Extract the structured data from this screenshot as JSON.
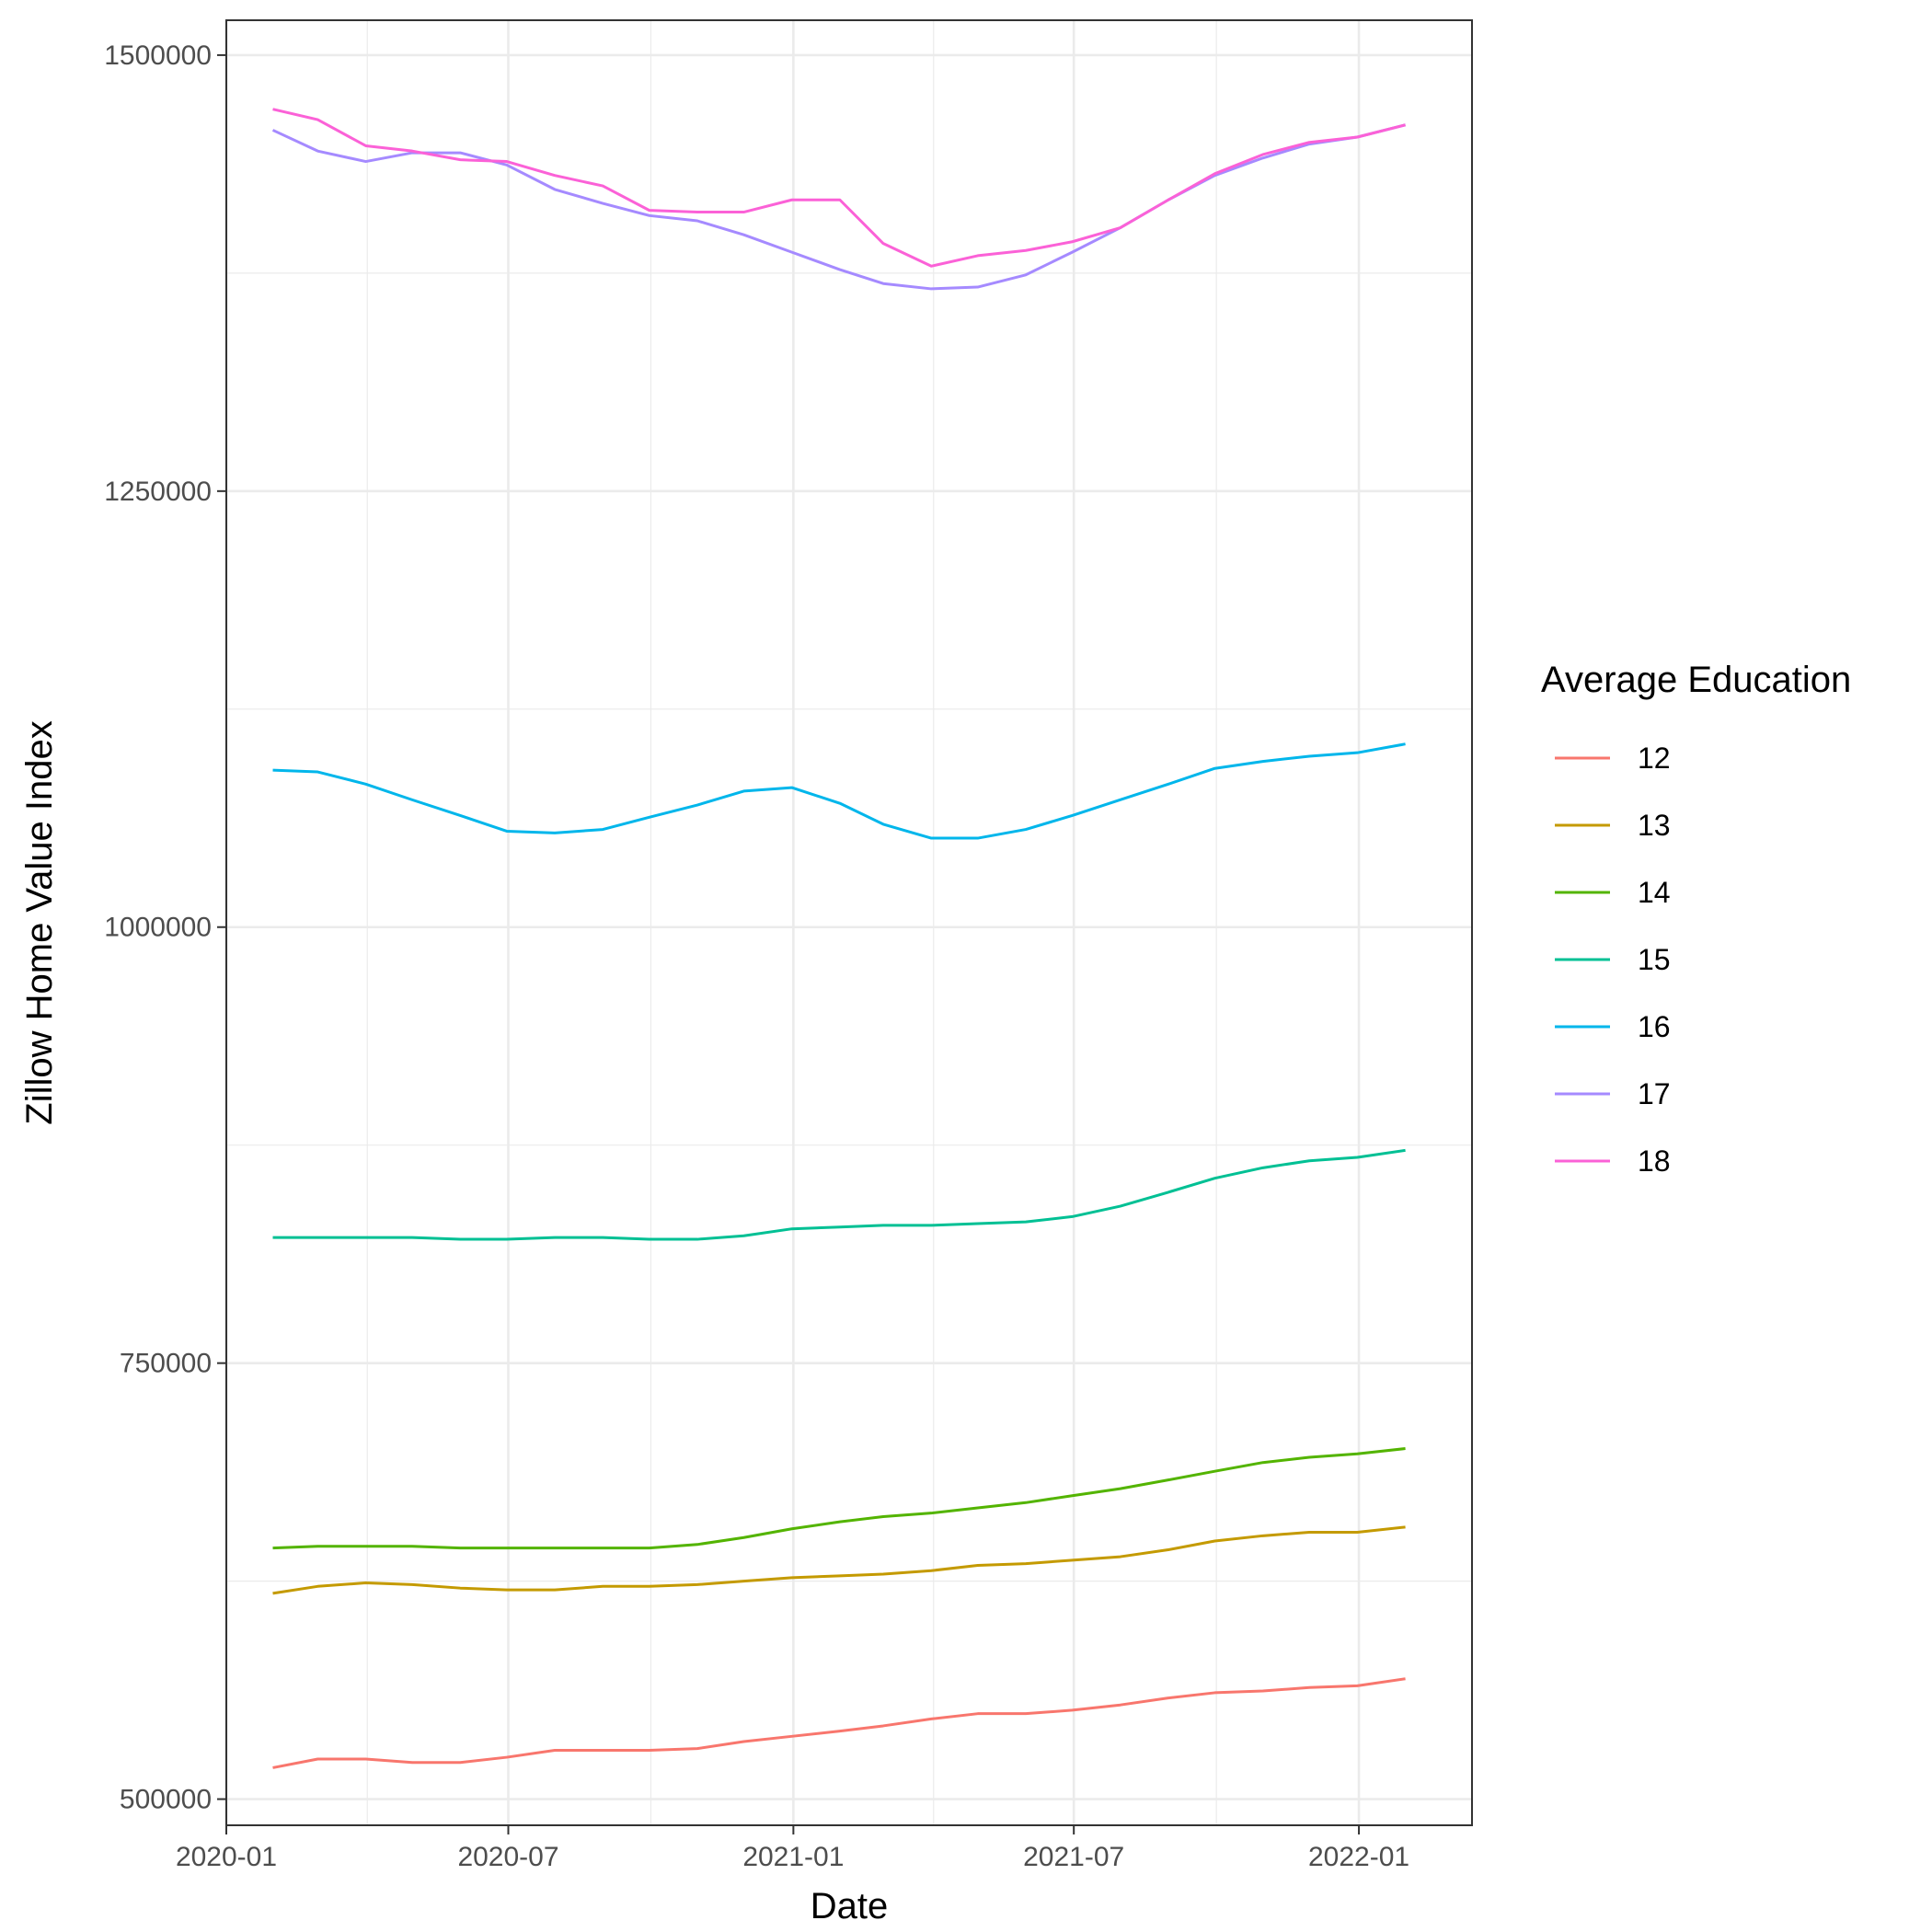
{
  "chart_data": {
    "type": "line",
    "xlabel": "Date",
    "ylabel": "Zillow Home Value Index",
    "x_axis_type": "date",
    "xlim": [
      "2020-01-01",
      "2022-03-15"
    ],
    "ylim": [
      485000,
      1520000
    ],
    "x_ticks": [
      "2020-01",
      "2020-07",
      "2021-01",
      "2021-07",
      "2022-01"
    ],
    "y_ticks": [
      500000,
      750000,
      1000000,
      1250000,
      1500000
    ],
    "y_minor_ticks": [
      625000,
      875000,
      1125000,
      1375000
    ],
    "grid": true,
    "legend_title": "Average Education",
    "legend_position": "right",
    "x": [
      "2020-01-31",
      "2020-02-29",
      "2020-03-31",
      "2020-04-30",
      "2020-05-31",
      "2020-06-30",
      "2020-07-31",
      "2020-08-31",
      "2020-09-30",
      "2020-10-31",
      "2020-11-30",
      "2020-12-31",
      "2021-01-31",
      "2021-02-28",
      "2021-03-31",
      "2021-04-30",
      "2021-05-31",
      "2021-06-30",
      "2021-07-31",
      "2021-08-31",
      "2021-09-30",
      "2021-10-31",
      "2021-11-30",
      "2021-12-31",
      "2022-01-31"
    ],
    "series": [
      {
        "name": "12",
        "color": "#F8766D",
        "values": [
          518000,
          523000,
          523000,
          521000,
          521000,
          524000,
          528000,
          528000,
          528000,
          529000,
          533000,
          536000,
          539000,
          542000,
          546000,
          549000,
          549000,
          551000,
          554000,
          558000,
          561000,
          562000,
          564000,
          565000,
          569000
        ]
      },
      {
        "name": "13",
        "color": "#C49A00",
        "values": [
          618000,
          622000,
          624000,
          623000,
          621000,
          620000,
          620000,
          622000,
          622000,
          623000,
          625000,
          627000,
          628000,
          629000,
          631000,
          634000,
          635000,
          637000,
          639000,
          643000,
          648000,
          651000,
          653000,
          653000,
          656000
        ]
      },
      {
        "name": "14",
        "color": "#53B400",
        "values": [
          644000,
          645000,
          645000,
          645000,
          644000,
          644000,
          644000,
          644000,
          644000,
          646000,
          650000,
          655000,
          659000,
          662000,
          664000,
          667000,
          670000,
          674000,
          678000,
          683000,
          688000,
          693000,
          696000,
          698000,
          701000
        ]
      },
      {
        "name": "15",
        "color": "#00C094",
        "values": [
          822000,
          822000,
          822000,
          822000,
          821000,
          821000,
          822000,
          822000,
          821000,
          821000,
          823000,
          827000,
          828000,
          829000,
          829000,
          830000,
          831000,
          834000,
          840000,
          848000,
          856000,
          862000,
          866000,
          868000,
          872000
        ]
      },
      {
        "name": "16",
        "color": "#00B6EB",
        "values": [
          1090000,
          1089000,
          1082000,
          1073000,
          1064000,
          1055000,
          1054000,
          1056000,
          1063000,
          1070000,
          1078000,
          1080000,
          1071000,
          1059000,
          1051000,
          1051000,
          1056000,
          1064000,
          1073000,
          1082000,
          1091000,
          1095000,
          1098000,
          1100000,
          1105000
        ]
      },
      {
        "name": "17",
        "color": "#A58AFF",
        "values": [
          1457000,
          1445000,
          1439000,
          1444000,
          1444000,
          1437000,
          1423000,
          1415000,
          1408000,
          1405000,
          1397000,
          1387000,
          1377000,
          1369000,
          1366000,
          1367000,
          1374000,
          1387000,
          1401000,
          1417000,
          1431000,
          1441000,
          1449000,
          1453000,
          1460000
        ]
      },
      {
        "name": "18",
        "color": "#FB61D7",
        "values": [
          1469000,
          1463000,
          1448000,
          1445000,
          1440000,
          1439000,
          1431000,
          1425000,
          1411000,
          1410000,
          1410000,
          1417000,
          1417000,
          1392000,
          1379000,
          1385000,
          1388000,
          1393000,
          1401000,
          1417000,
          1432000,
          1443000,
          1450000,
          1453000,
          1460000
        ]
      }
    ]
  }
}
